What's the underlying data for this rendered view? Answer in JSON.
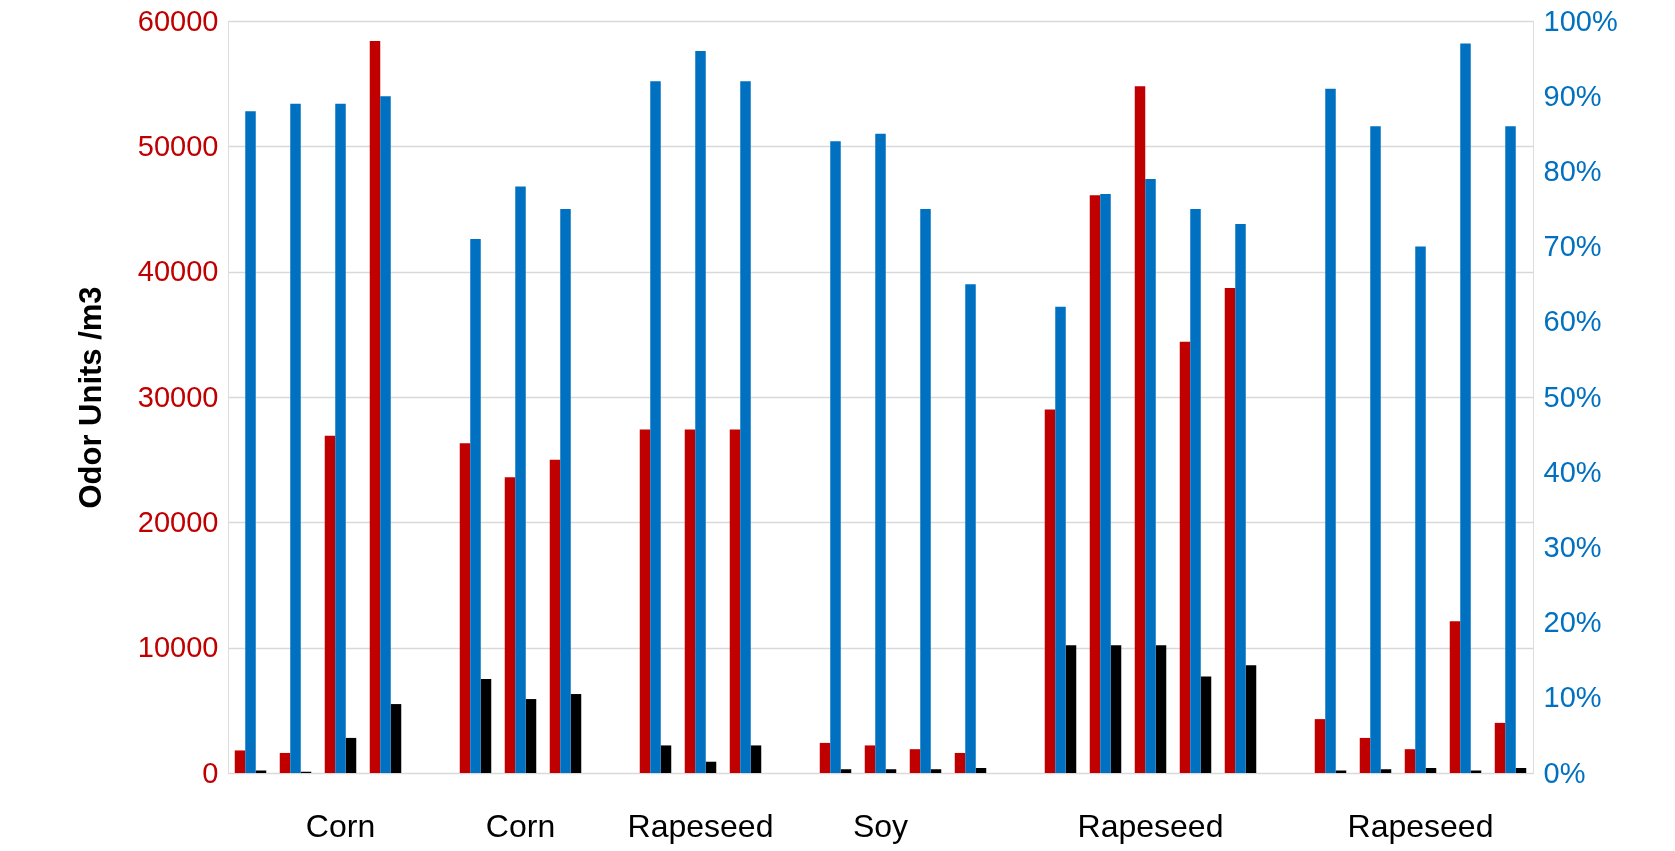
{
  "chart_data": {
    "type": "bar",
    "ylabel": "Odor Units /m3",
    "categories": [
      null,
      null,
      "Corn",
      null,
      null,
      null,
      "Corn",
      null,
      null,
      null,
      "Rapeseed",
      null,
      null,
      null,
      "Soy",
      null,
      null,
      null,
      null,
      null,
      "Rapeseed",
      null,
      null,
      null,
      null,
      null,
      "Rapeseed",
      null,
      null
    ],
    "series": [
      {
        "color": "#c00000",
        "values": [
          1800,
          1600,
          26900,
          58400,
          null,
          26300,
          23600,
          25000,
          null,
          27400,
          27400,
          27400,
          null,
          2400,
          2200,
          1900,
          1600,
          null,
          29000,
          46100,
          54800,
          34400,
          38700,
          null,
          4300,
          2800,
          1900,
          12100,
          4000
        ]
      },
      {
        "color": "#0070c0",
        "axis": "y2",
        "values": [
          88,
          89,
          89,
          90,
          null,
          71,
          78,
          75,
          null,
          92,
          96,
          92,
          null,
          84,
          85,
          75,
          65,
          null,
          62,
          77,
          79,
          75,
          73,
          null,
          91,
          86,
          70,
          97,
          86
        ]
      },
      {
        "color": "#000000",
        "values": [
          200,
          100,
          2800,
          5500,
          null,
          7500,
          5900,
          6300,
          null,
          2200,
          900,
          2200,
          null,
          300,
          300,
          300,
          400,
          null,
          10200,
          10200,
          10200,
          7700,
          8600,
          null,
          200,
          300,
          400,
          200,
          400
        ]
      }
    ],
    "ylim": [
      0,
      60000
    ],
    "yticks": [
      0,
      10000,
      20000,
      30000,
      40000,
      50000,
      60000
    ],
    "y2lim": [
      0,
      100
    ],
    "y2ticks": [
      {
        "value": 0,
        "label": "0%"
      },
      {
        "value": 10,
        "label": "10%"
      },
      {
        "value": 20,
        "label": "20%"
      },
      {
        "value": 30,
        "label": "30%"
      },
      {
        "value": 40,
        "label": "40%"
      },
      {
        "value": 50,
        "label": "50%"
      },
      {
        "value": 60,
        "label": "60%"
      },
      {
        "value": 70,
        "label": "70%"
      },
      {
        "value": 80,
        "label": "80%"
      },
      {
        "value": 90,
        "label": "90%"
      },
      {
        "value": 100,
        "label": "100%"
      }
    ],
    "grid": "y"
  }
}
